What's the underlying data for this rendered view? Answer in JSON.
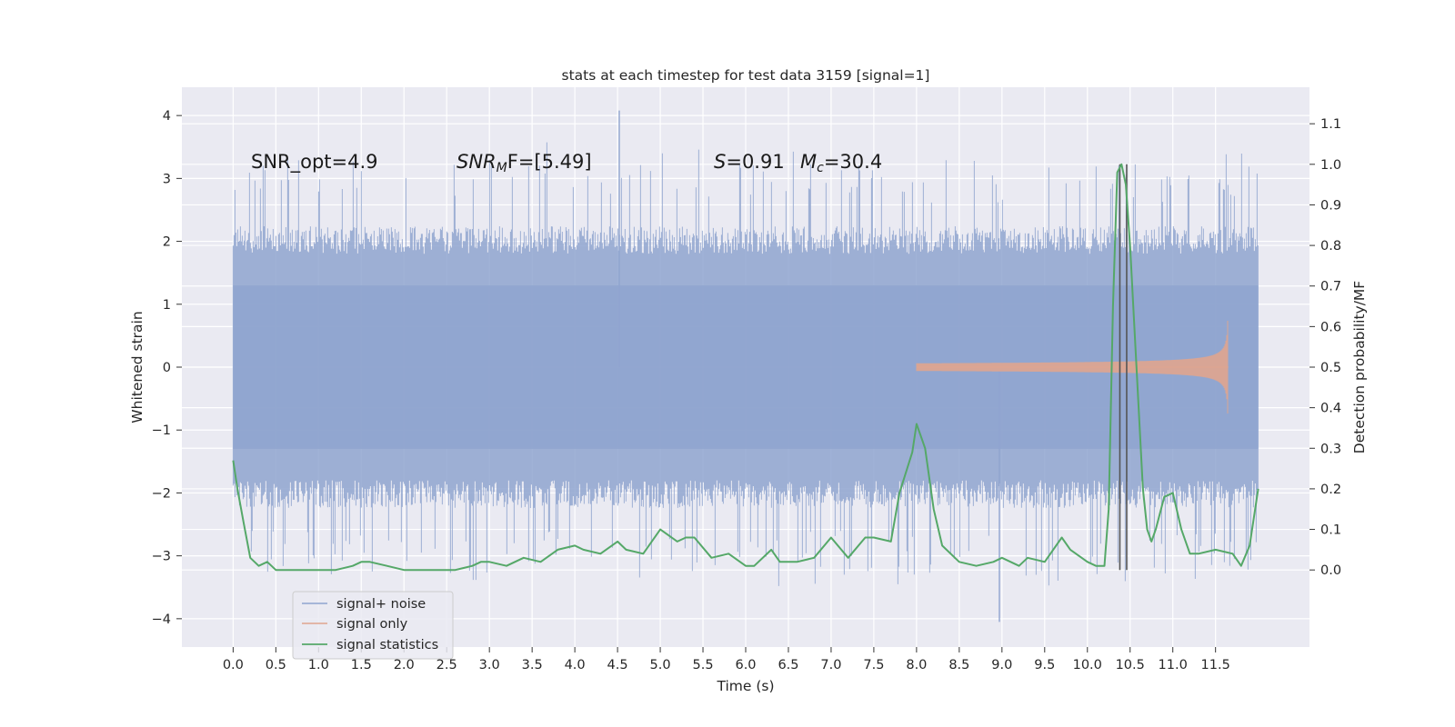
{
  "chart_data": {
    "type": "line",
    "title": "stats at each timestep for test data 3159 [signal=1]",
    "xlabel": "Time (s)",
    "ylabel": "Whitened strain",
    "y2label": "Detection probability/MF",
    "xlim": [
      -0.6,
      12.6
    ],
    "ylim": [
      -4.45,
      4.45
    ],
    "y2lim": [
      -0.19,
      1.19
    ],
    "x_ticks": [
      0.0,
      0.5,
      1.0,
      1.5,
      2.0,
      2.5,
      3.0,
      3.5,
      4.0,
      4.5,
      5.0,
      5.5,
      6.0,
      6.5,
      7.0,
      7.5,
      8.0,
      8.5,
      9.0,
      9.5,
      10.0,
      10.5,
      11.0,
      11.5
    ],
    "x_tick_labels": [
      "0.0",
      "0.5",
      "1.0",
      "1.5",
      "2.0",
      "2.5",
      "3.0",
      "3.5",
      "4.0",
      "4.5",
      "5.0",
      "5.5",
      "6.0",
      "6.5",
      "7.0",
      "7.5",
      "8.0",
      "8.5",
      "9.0",
      "9.5",
      "10.0",
      "10.5",
      "11.0",
      "11.5"
    ],
    "y_ticks": [
      -4,
      -3,
      -2,
      -1,
      0,
      1,
      2,
      3,
      4
    ],
    "y_tick_labels": [
      "−4",
      "−3",
      "−2",
      "−1",
      "0",
      "1",
      "2",
      "3",
      "4"
    ],
    "y2_ticks": [
      0.0,
      0.1,
      0.2,
      0.3,
      0.4,
      0.5,
      0.6,
      0.7,
      0.8,
      0.9,
      1.0,
      1.1
    ],
    "y2_tick_labels": [
      "0.0",
      "0.1",
      "0.2",
      "0.3",
      "0.4",
      "0.5",
      "0.6",
      "0.7",
      "0.8",
      "0.9",
      "1.0",
      "1.1"
    ],
    "grid": true,
    "legend_position": "bottom-left",
    "annotations": {
      "snr_opt": "SNR_opt=4.9",
      "snr_mf_main": "SNR",
      "snr_mf_sub": "M",
      "snr_mf_rest": "F=[5.49]",
      "s_sym": "S",
      "s_val": "=0.91",
      "mc_sym": "M",
      "mc_sub": "c",
      "mc_val": "=30.4"
    },
    "noise": {
      "t_start": 0.0,
      "t_end": 12.0,
      "core_amplitude": 1.3,
      "typical_peak_range": [
        1.8,
        2.6
      ],
      "max_positive_spike": 4.08,
      "max_negative_spike": -4.05
    },
    "signal_only": {
      "t_end": 11.65,
      "peak_amplitude": 1.1,
      "visible_from": 8.0
    },
    "vertical_markers": [
      10.38,
      10.46
    ],
    "series": [
      {
        "name": "signal+ noise",
        "color": "#8fa4cf"
      },
      {
        "name": "signal only",
        "color": "#e0a58e"
      },
      {
        "name": "signal statistics",
        "color": "#55a868",
        "x": [
          0.0,
          0.05,
          0.12,
          0.2,
          0.3,
          0.4,
          0.5,
          0.6,
          0.8,
          1.0,
          1.2,
          1.4,
          1.5,
          1.6,
          1.8,
          2.0,
          2.2,
          2.4,
          2.6,
          2.8,
          2.9,
          3.0,
          3.2,
          3.4,
          3.6,
          3.8,
          4.0,
          4.1,
          4.3,
          4.5,
          4.6,
          4.8,
          4.9,
          5.0,
          5.2,
          5.3,
          5.4,
          5.6,
          5.8,
          6.0,
          6.1,
          6.3,
          6.4,
          6.6,
          6.8,
          7.0,
          7.2,
          7.4,
          7.5,
          7.7,
          7.8,
          7.95,
          8.0,
          8.1,
          8.2,
          8.3,
          8.5,
          8.7,
          8.9,
          9.0,
          9.2,
          9.3,
          9.5,
          9.7,
          9.8,
          10.0,
          10.1,
          10.2,
          10.25,
          10.3,
          10.35,
          10.4,
          10.45,
          10.5,
          10.55,
          10.6,
          10.65,
          10.7,
          10.75,
          10.8,
          10.9,
          11.0,
          11.1,
          11.2,
          11.3,
          11.5,
          11.7,
          11.8,
          11.9,
          12.0
        ],
        "y": [
          0.27,
          0.2,
          0.12,
          0.03,
          0.01,
          0.02,
          0.0,
          0.0,
          0.0,
          0.0,
          0.0,
          0.01,
          0.02,
          0.02,
          0.01,
          0.0,
          0.0,
          0.0,
          0.0,
          0.01,
          0.02,
          0.02,
          0.01,
          0.03,
          0.02,
          0.05,
          0.06,
          0.05,
          0.04,
          0.07,
          0.05,
          0.04,
          0.07,
          0.1,
          0.07,
          0.08,
          0.08,
          0.03,
          0.04,
          0.01,
          0.01,
          0.05,
          0.02,
          0.02,
          0.03,
          0.08,
          0.03,
          0.08,
          0.08,
          0.07,
          0.19,
          0.29,
          0.36,
          0.3,
          0.15,
          0.06,
          0.02,
          0.01,
          0.02,
          0.03,
          0.01,
          0.03,
          0.02,
          0.08,
          0.05,
          0.02,
          0.01,
          0.01,
          0.15,
          0.65,
          0.98,
          1.0,
          0.95,
          0.8,
          0.6,
          0.4,
          0.2,
          0.1,
          0.07,
          0.1,
          0.18,
          0.19,
          0.1,
          0.04,
          0.04,
          0.05,
          0.04,
          0.01,
          0.06,
          0.2
        ]
      }
    ]
  }
}
